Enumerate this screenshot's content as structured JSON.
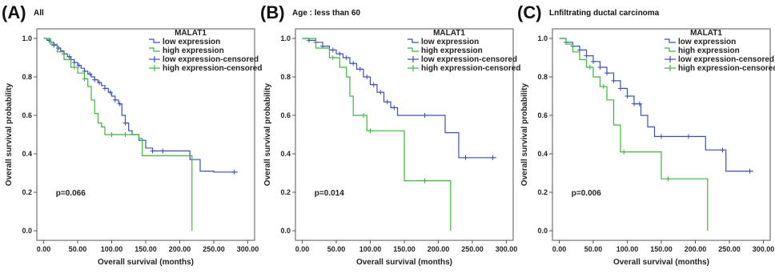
{
  "colors": {
    "low": "#3b4fb0",
    "high": "#3db23d",
    "frame": "#555555"
  },
  "chart_data": [
    {
      "type": "line",
      "panel_label": "(A)",
      "title": "All",
      "xlabel": "Overall survival (months)",
      "ylabel": "Overall survival probability",
      "xlim": [
        -10,
        310
      ],
      "ylim": [
        -0.05,
        1.05
      ],
      "x_ticks": [
        "0.00",
        "50.00",
        "100.00",
        "150.00",
        "200.00",
        "250.00",
        "300.00"
      ],
      "y_ticks": [
        "0.0",
        "0.2",
        "0.4",
        "0.6",
        "0.8",
        "1.0"
      ],
      "legend_title": "MALAT1",
      "legend": [
        "low expression",
        "high expression",
        "low expression-censored",
        "high expression-censored"
      ],
      "p_value": "p=0.066",
      "series": [
        {
          "name": "low expression",
          "x": [
            0,
            5,
            10,
            15,
            20,
            25,
            30,
            35,
            40,
            45,
            50,
            55,
            60,
            65,
            70,
            75,
            80,
            85,
            90,
            95,
            100,
            105,
            110,
            115,
            120,
            125,
            130,
            140,
            150,
            160,
            175,
            215,
            230,
            250,
            285
          ],
          "y": [
            1.0,
            0.99,
            0.98,
            0.965,
            0.95,
            0.935,
            0.92,
            0.905,
            0.89,
            0.875,
            0.86,
            0.845,
            0.83,
            0.815,
            0.8,
            0.785,
            0.77,
            0.755,
            0.74,
            0.72,
            0.7,
            0.68,
            0.66,
            0.6,
            0.56,
            0.52,
            0.5,
            0.47,
            0.43,
            0.415,
            0.415,
            0.37,
            0.31,
            0.305,
            0.305
          ],
          "censored_x": [
            8,
            15,
            22,
            30,
            38,
            45,
            52,
            60,
            68,
            75,
            82,
            90,
            98,
            105,
            112,
            120,
            160,
            175,
            280
          ]
        },
        {
          "name": "high expression",
          "x": [
            0,
            10,
            20,
            30,
            40,
            50,
            60,
            65,
            70,
            75,
            80,
            85,
            90,
            95,
            140,
            145,
            215,
            218
          ],
          "y": [
            1.0,
            0.97,
            0.93,
            0.89,
            0.85,
            0.82,
            0.79,
            0.75,
            0.68,
            0.61,
            0.56,
            0.54,
            0.5,
            0.5,
            0.48,
            0.39,
            0.39,
            0.0
          ],
          "censored_x": [
            45,
            60,
            100,
            120
          ]
        }
      ]
    },
    {
      "type": "line",
      "panel_label": "(B)",
      "title": "Age : less than 60",
      "xlabel": "Overall survival (months)",
      "ylabel": "Overall survival probability",
      "xlim": [
        -10,
        310
      ],
      "ylim": [
        -0.05,
        1.05
      ],
      "x_ticks": [
        "0.00",
        "50.00",
        "100.00",
        "150.00",
        "200.00",
        "250.00",
        "300.00"
      ],
      "y_ticks": [
        "0.0",
        "0.2",
        "0.4",
        "0.6",
        "0.8",
        "1.0"
      ],
      "legend_title": "MALAT1",
      "legend": [
        "low expression",
        "high expression",
        "low expression-censored",
        "high expression-censored"
      ],
      "p_value": "p=0.014",
      "series": [
        {
          "name": "low expression",
          "x": [
            0,
            10,
            20,
            30,
            40,
            50,
            60,
            70,
            80,
            90,
            100,
            110,
            120,
            130,
            140,
            210,
            230,
            285
          ],
          "y": [
            1.0,
            0.99,
            0.98,
            0.96,
            0.94,
            0.92,
            0.9,
            0.87,
            0.84,
            0.8,
            0.76,
            0.72,
            0.67,
            0.64,
            0.6,
            0.51,
            0.38,
            0.38
          ],
          "censored_x": [
            10,
            20,
            30,
            45,
            55,
            65,
            75,
            85,
            95,
            105,
            115,
            125,
            135,
            180,
            240,
            280
          ]
        },
        {
          "name": "high expression",
          "x": [
            0,
            20,
            40,
            55,
            65,
            70,
            75,
            95,
            105,
            150,
            215,
            218
          ],
          "y": [
            1.0,
            0.95,
            0.9,
            0.85,
            0.8,
            0.7,
            0.6,
            0.52,
            0.52,
            0.26,
            0.26,
            0.0
          ],
          "censored_x": [
            45,
            90,
            100,
            180
          ]
        }
      ]
    },
    {
      "type": "line",
      "panel_label": "(C)",
      "title": "Lnfiltrating ductal carcinoma",
      "xlabel": "Overall survival (months)",
      "ylabel": "Overall survival probability",
      "xlim": [
        -10,
        310
      ],
      "ylim": [
        -0.05,
        1.05
      ],
      "x_ticks": [
        "0.00",
        "50.00",
        "100.00",
        "150.00",
        "200.00",
        "250.00",
        "300.00"
      ],
      "y_ticks": [
        "0.0",
        "0.2",
        "0.4",
        "0.6",
        "0.8",
        "1.0"
      ],
      "legend_title": "MALAT1",
      "legend": [
        "low expression",
        "high expression",
        "low expression-censored",
        "high expression-censored"
      ],
      "p_value": "p=0.006",
      "series": [
        {
          "name": "low expression",
          "x": [
            0,
            10,
            20,
            30,
            40,
            50,
            60,
            70,
            80,
            90,
            100,
            110,
            120,
            130,
            140,
            215,
            245,
            285
          ],
          "y": [
            1.0,
            0.98,
            0.96,
            0.94,
            0.91,
            0.88,
            0.85,
            0.82,
            0.78,
            0.74,
            0.7,
            0.66,
            0.6,
            0.54,
            0.49,
            0.42,
            0.31,
            0.31
          ],
          "censored_x": [
            10,
            20,
            30,
            40,
            50,
            60,
            70,
            80,
            90,
            100,
            110,
            118,
            150,
            190,
            240,
            280
          ]
        },
        {
          "name": "high expression",
          "x": [
            0,
            10,
            20,
            30,
            40,
            50,
            60,
            70,
            80,
            90,
            150,
            215,
            218
          ],
          "y": [
            1.0,
            0.97,
            0.93,
            0.89,
            0.85,
            0.8,
            0.75,
            0.68,
            0.55,
            0.41,
            0.27,
            0.27,
            0.0
          ],
          "censored_x": [
            45,
            65,
            95,
            160
          ]
        }
      ]
    }
  ]
}
